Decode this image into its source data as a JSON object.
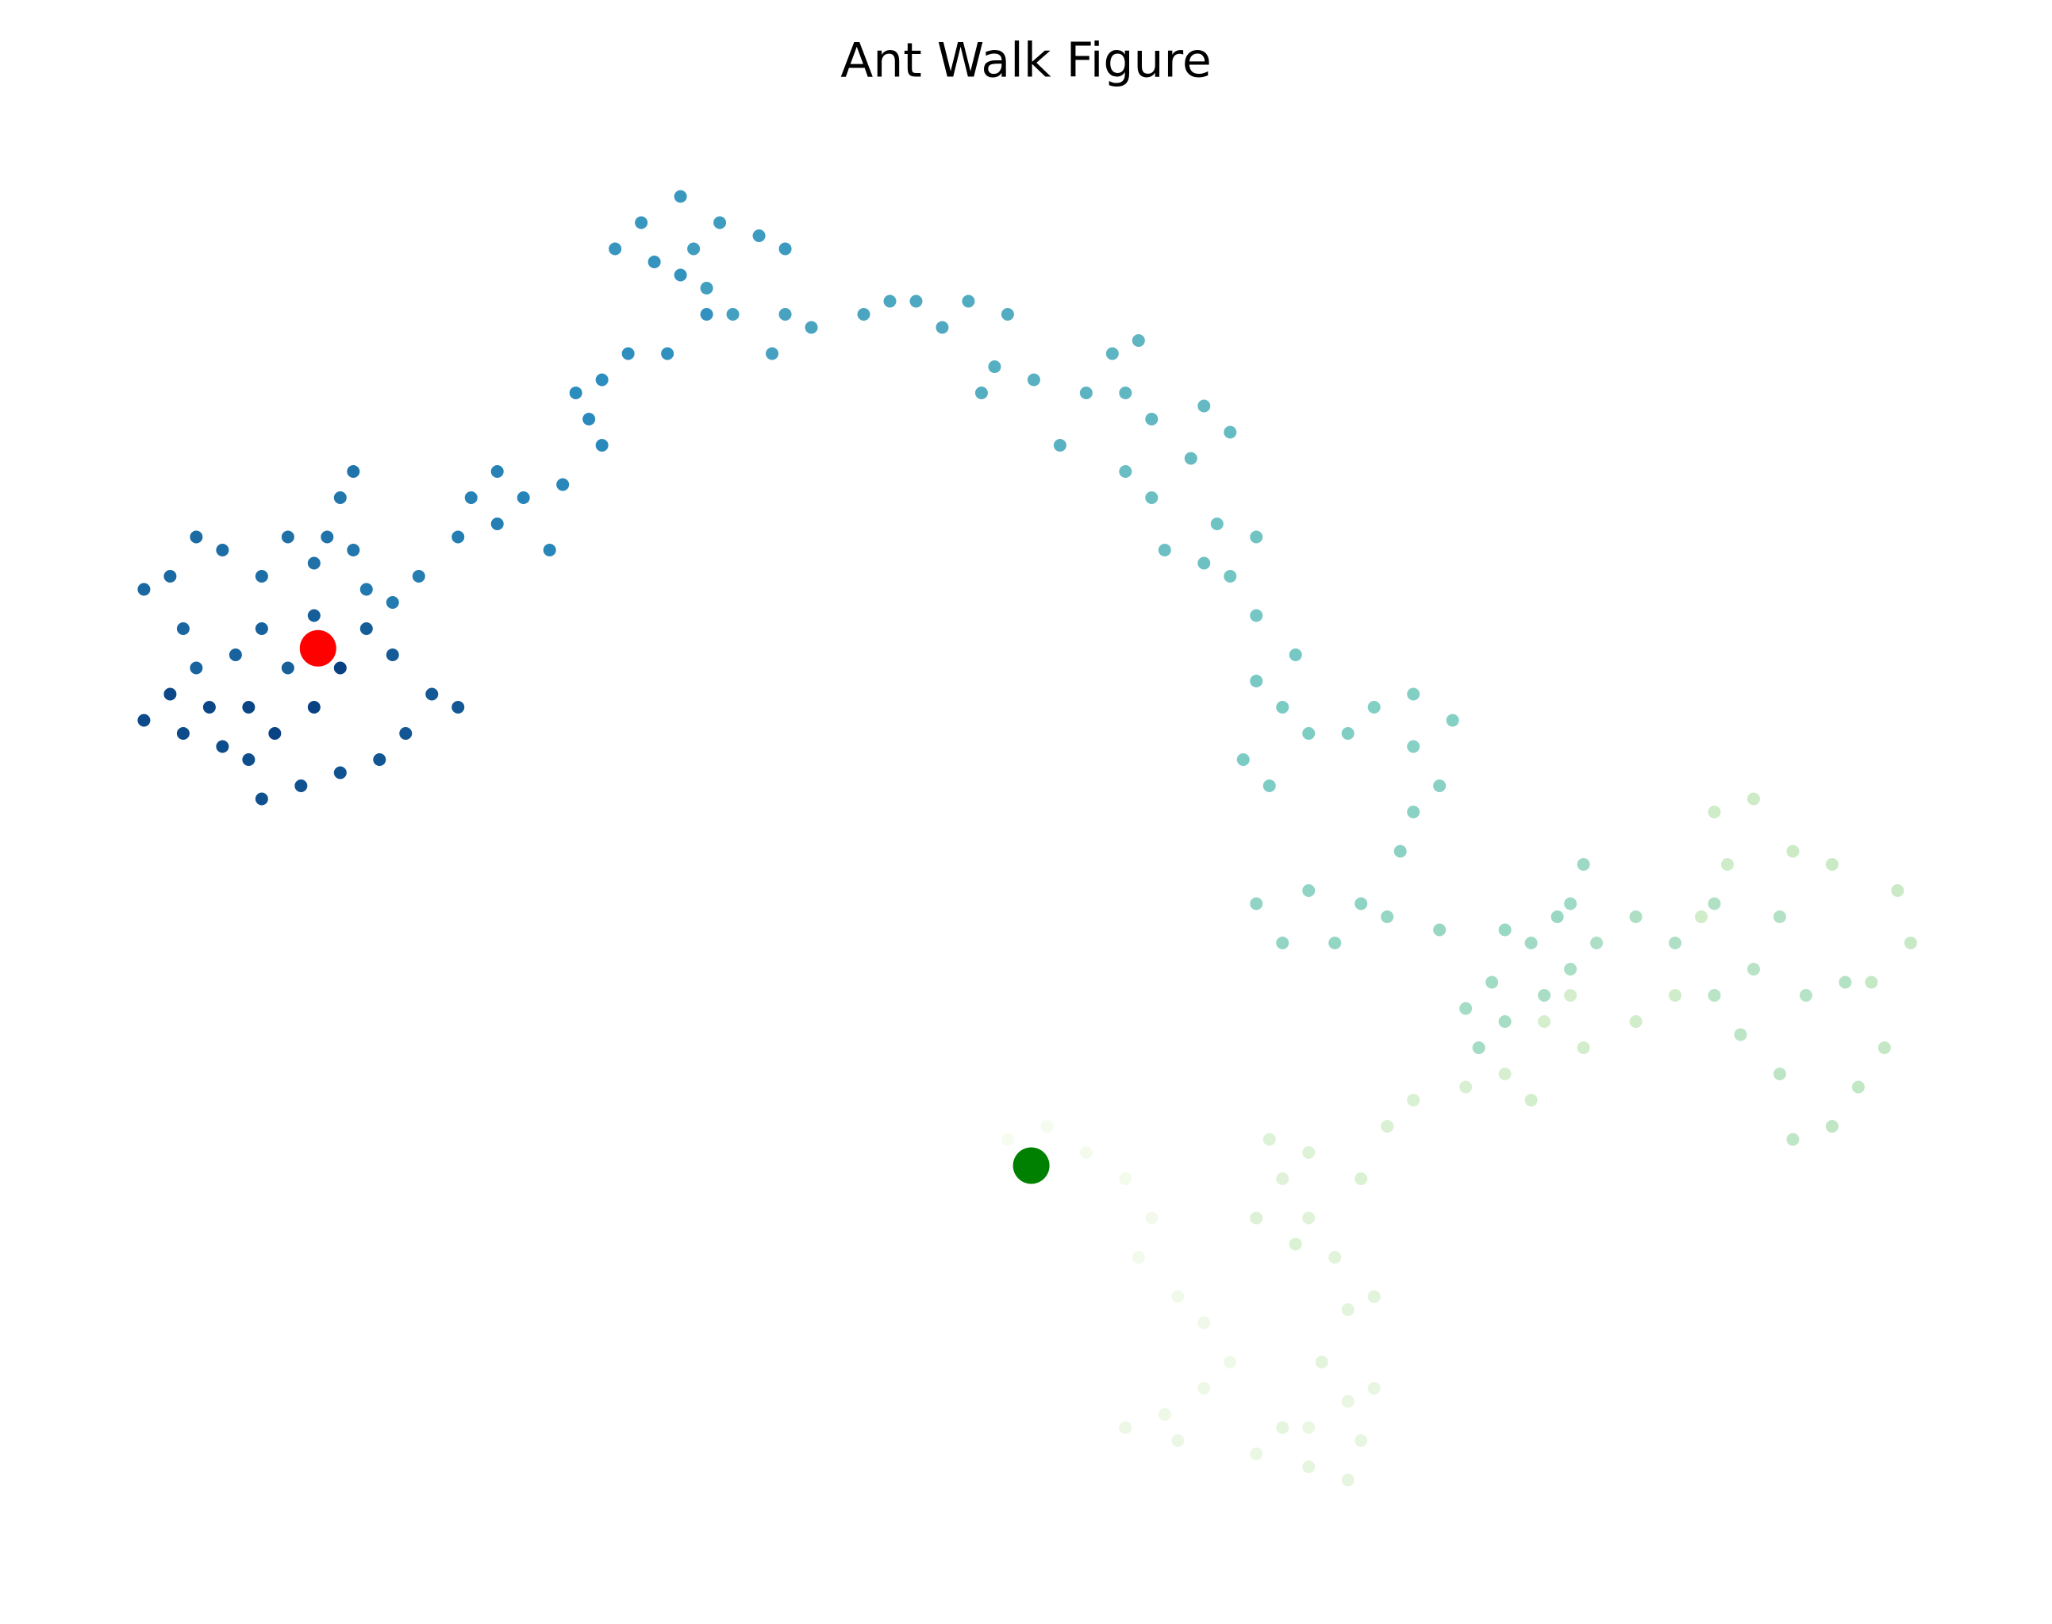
{
  "chart_data": {
    "type": "scatter",
    "title": "Ant Walk Figure",
    "xlim": [
      0,
      1568
    ],
    "ylim": [
      1240,
      0
    ],
    "axis": false,
    "colors": [
      "#f7fcf0",
      "#ccebc5",
      "#7bccc4",
      "#2b8cbe",
      "#084081"
    ],
    "x": [
      788,
      770,
      800,
      830,
      860,
      880,
      870,
      900,
      920,
      940,
      920,
      890,
      860,
      900,
      960,
      1000,
      1030,
      1050,
      1040,
      1030,
      1000,
      980,
      1010,
      1030,
      1050,
      1020,
      1000,
      980,
      970,
      1000,
      960,
      990,
      1040,
      1060,
      1080,
      1120,
      1150,
      1130,
      1180,
      1200,
      1170,
      1210,
      1250,
      1280,
      1300,
      1320,
      1310,
      1340,
      1370,
      1400,
      1450,
      1460,
      1430,
      1440,
      1420,
      1400,
      1370,
      1360,
      1330,
      1310,
      1340,
      1380,
      1410,
      1360,
      1310,
      1280,
      1250,
      1220,
      1200,
      1180,
      1150,
      1120,
      1130,
      1140,
      1170,
      1200,
      1210,
      1190,
      1150,
      1100,
      1060,
      1020,
      980,
      960,
      1000,
      1040,
      1070,
      1080,
      1100,
      1080,
      1110,
      1080,
      1050,
      1030,
      1000,
      970,
      950,
      980,
      960,
      990,
      960,
      940,
      960,
      930,
      920,
      890,
      880,
      860,
      910,
      940,
      920,
      880,
      860,
      870,
      850,
      830,
      810,
      790,
      760,
      750,
      770,
      740,
      720,
      700,
      680,
      660,
      620,
      600,
      590,
      560,
      540,
      530,
      550,
      580,
      600,
      520,
      490,
      470,
      500,
      520,
      540,
      510,
      480,
      460,
      440,
      450,
      460,
      430,
      420,
      400,
      380,
      360,
      380,
      350,
      320,
      300,
      280,
      270,
      260,
      270,
      250,
      240,
      220,
      200,
      170,
      150,
      130,
      110,
      140,
      150,
      180,
      200,
      220,
      240,
      280,
      300,
      330,
      350,
      310,
      290,
      260,
      230,
      200,
      190,
      170,
      140,
      110,
      130,
      160,
      190,
      210,
      240,
      260
    ],
    "y": [
      890,
      870,
      860,
      880,
      900,
      930,
      960,
      990,
      1010,
      1040,
      1060,
      1080,
      1090,
      1100,
      1110,
      1090,
      1070,
      1060,
      1100,
      1130,
      1120,
      1090,
      1040,
      1000,
      990,
      960,
      930,
      900,
      870,
      880,
      930,
      950,
      900,
      860,
      840,
      830,
      820,
      800,
      780,
      760,
      840,
      800,
      780,
      760,
      700,
      660,
      620,
      610,
      650,
      660,
      680,
      720,
      750,
      800,
      830,
      860,
      870,
      820,
      790,
      760,
      740,
      760,
      750,
      700,
      690,
      720,
      700,
      720,
      740,
      760,
      780,
      770,
      800,
      750,
      720,
      690,
      660,
      700,
      710,
      710,
      700,
      720,
      720,
      690,
      680,
      690,
      650,
      620,
      600,
      570,
      550,
      530,
      540,
      560,
      560,
      600,
      580,
      540,
      520,
      500,
      470,
      440,
      410,
      400,
      430,
      420,
      380,
      360,
      350,
      330,
      310,
      320,
      300,
      260,
      270,
      300,
      340,
      290,
      280,
      300,
      240,
      230,
      250,
      230,
      230,
      240,
      250,
      240,
      270,
      240,
      220,
      190,
      170,
      180,
      190,
      150,
      170,
      190,
      200,
      210,
      240,
      270,
      270,
      290,
      300,
      320,
      340,
      370,
      420,
      380,
      360,
      380,
      400,
      410,
      440,
      460,
      450,
      420,
      380,
      360,
      410,
      430,
      410,
      440,
      420,
      410,
      440,
      450,
      480,
      510,
      500,
      480,
      510,
      470,
      480,
      500,
      530,
      540,
      560,
      580,
      590,
      600,
      610,
      580,
      570,
      560,
      550,
      530,
      540,
      540,
      560,
      540,
      510
    ],
    "start": {
      "x": 788,
      "y": 890,
      "color": "#008000"
    },
    "end": {
      "x": 243,
      "y": 495,
      "color": "#ff0000"
    }
  }
}
